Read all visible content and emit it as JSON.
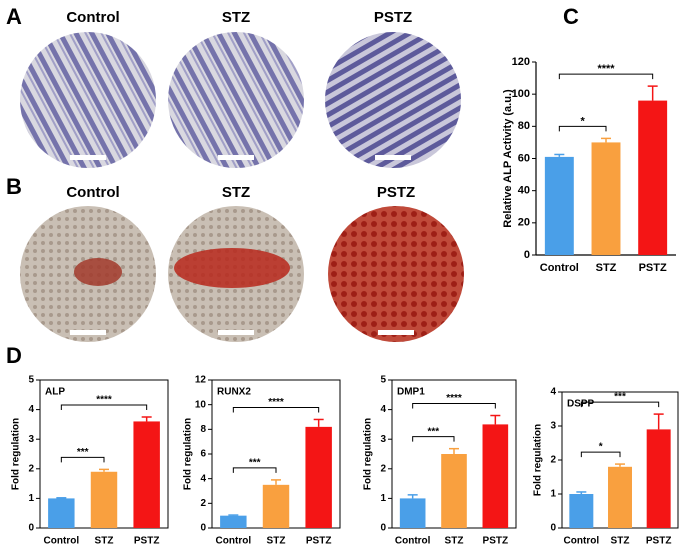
{
  "panel_labels": [
    "A",
    "B",
    "C",
    "D"
  ],
  "image_rows": [
    {
      "columns": [
        "Control",
        "STZ",
        "PSTZ"
      ]
    },
    {
      "columns": [
        "Control",
        "STZ",
        "PSTZ"
      ]
    }
  ],
  "chart_data": [
    {
      "type": "bar",
      "ylabel": "Relative ALP Activity (a.u.)",
      "categories": [
        "Control",
        "STZ",
        "PSTZ"
      ],
      "values": [
        61,
        70,
        96
      ],
      "errors": [
        1.5,
        2.5,
        9
      ],
      "colors": [
        "#4a9fe8",
        "#f9a03f",
        "#f41515"
      ],
      "ylim": [
        0,
        120
      ],
      "yticks": [
        0,
        20,
        40,
        60,
        80,
        100,
        120
      ],
      "annotations": [
        {
          "between": [
            0,
            1
          ],
          "label": "*"
        },
        {
          "between": [
            0,
            2
          ],
          "label": "****"
        }
      ]
    },
    {
      "type": "bar",
      "title": "ALP",
      "ylabel": "Fold regulation",
      "categories": [
        "Control",
        "STZ",
        "PSTZ"
      ],
      "values": [
        1.0,
        1.9,
        3.6
      ],
      "errors": [
        0.02,
        0.08,
        0.15
      ],
      "colors": [
        "#4a9fe8",
        "#f9a03f",
        "#f41515"
      ],
      "ylim": [
        0,
        5
      ],
      "yticks": [
        0,
        1,
        2,
        3,
        4,
        5
      ],
      "annotations": [
        {
          "between": [
            0,
            1
          ],
          "label": "***"
        },
        {
          "between": [
            0,
            2
          ],
          "label": "****"
        }
      ]
    },
    {
      "type": "bar",
      "title": "RUNX2",
      "ylabel": "Fold regulation",
      "categories": [
        "Control",
        "STZ",
        "PSTZ"
      ],
      "values": [
        1.0,
        3.5,
        8.2
      ],
      "errors": [
        0.05,
        0.4,
        0.6
      ],
      "colors": [
        "#4a9fe8",
        "#f9a03f",
        "#f41515"
      ],
      "ylim": [
        0,
        12
      ],
      "yticks": [
        0,
        2,
        4,
        6,
        8,
        10,
        12
      ],
      "annotations": [
        {
          "between": [
            0,
            1
          ],
          "label": "***"
        },
        {
          "between": [
            0,
            2
          ],
          "label": "****"
        }
      ]
    },
    {
      "type": "bar",
      "title": "DMP1",
      "ylabel": "Fold regulation",
      "categories": [
        "Control",
        "STZ",
        "PSTZ"
      ],
      "values": [
        1.0,
        2.5,
        3.5
      ],
      "errors": [
        0.12,
        0.18,
        0.3
      ],
      "colors": [
        "#4a9fe8",
        "#f9a03f",
        "#f41515"
      ],
      "ylim": [
        0,
        5
      ],
      "yticks": [
        0,
        1,
        2,
        3,
        4,
        5
      ],
      "annotations": [
        {
          "between": [
            0,
            1
          ],
          "label": "***"
        },
        {
          "between": [
            0,
            2
          ],
          "label": "****"
        }
      ]
    },
    {
      "type": "bar",
      "title": "DSPP",
      "ylabel": "Fold regulation",
      "categories": [
        "Control",
        "STZ",
        "PSTZ"
      ],
      "values": [
        1.0,
        1.8,
        2.9
      ],
      "errors": [
        0.06,
        0.08,
        0.45
      ],
      "colors": [
        "#4a9fe8",
        "#f9a03f",
        "#f41515"
      ],
      "ylim": [
        0,
        4
      ],
      "yticks": [
        0,
        1,
        2,
        3,
        4
      ],
      "annotations": [
        {
          "between": [
            0,
            1
          ],
          "label": "*"
        },
        {
          "between": [
            0,
            2
          ],
          "label": "***"
        }
      ]
    }
  ]
}
